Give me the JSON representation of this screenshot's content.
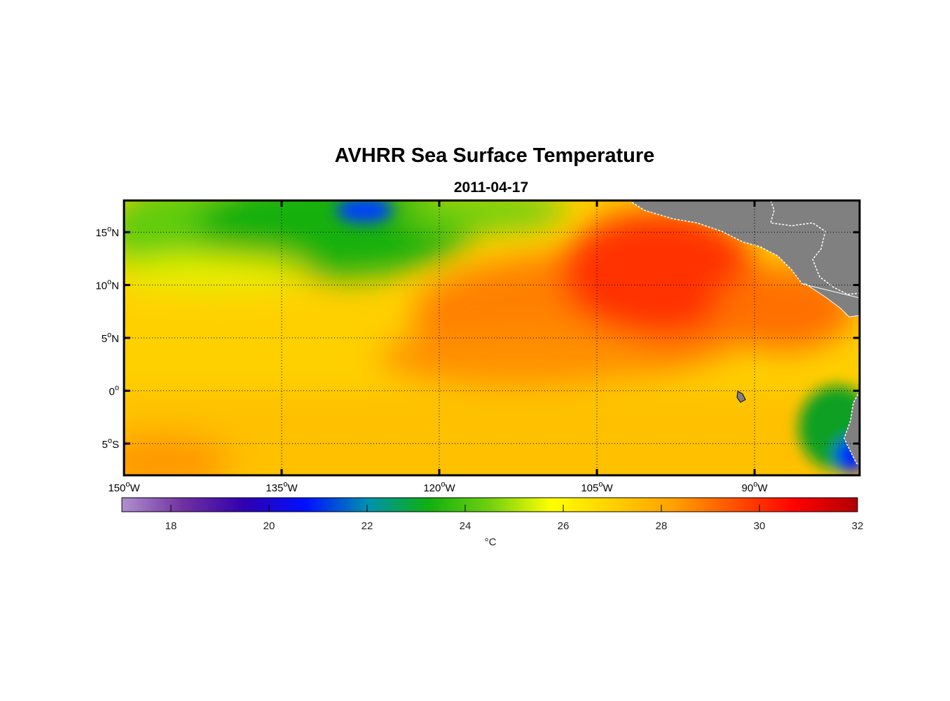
{
  "title": "AVHRR Sea Surface Temperature",
  "subtitle": "2011-04-17",
  "map": {
    "lon_range": [
      -150,
      -80
    ],
    "lat_range": [
      -8,
      18
    ],
    "lon_ticks": [
      {
        "value": -150,
        "num": "150",
        "hemi": "W"
      },
      {
        "value": -135,
        "num": "135",
        "hemi": "W"
      },
      {
        "value": -120,
        "num": "120",
        "hemi": "W"
      },
      {
        "value": -105,
        "num": "105",
        "hemi": "W"
      },
      {
        "value": -90,
        "num": "90",
        "hemi": "W"
      }
    ],
    "lat_ticks": [
      {
        "value": 15,
        "num": "15",
        "hemi": "N"
      },
      {
        "value": 10,
        "num": "10",
        "hemi": "N"
      },
      {
        "value": 5,
        "num": "5",
        "hemi": "N"
      },
      {
        "value": 0,
        "num": "0",
        "hemi": ""
      },
      {
        "value": -5,
        "num": "5",
        "hemi": "S"
      }
    ],
    "degree_symbol": "o",
    "land_color": "#808080",
    "grid": true
  },
  "colorbar": {
    "range": [
      17,
      32
    ],
    "ticks": [
      "18",
      "20",
      "22",
      "24",
      "26",
      "28",
      "30",
      "32"
    ],
    "unit": "°C",
    "colors": [
      "#b090d0",
      "#7030a0",
      "#3000b0",
      "#0010ff",
      "#0090b0",
      "#10b010",
      "#70d010",
      "#ffff00",
      "#ffd000",
      "#ffa000",
      "#ff5000",
      "#ff0000",
      "#b00000"
    ]
  }
}
